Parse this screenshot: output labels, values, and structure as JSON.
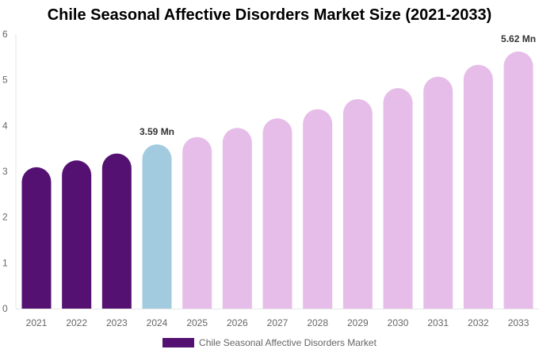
{
  "chart_data": {
    "type": "bar",
    "title": "Chile Seasonal Affective Disorders Market Size (2021-2033)",
    "categories": [
      "2021",
      "2022",
      "2023",
      "2024",
      "2025",
      "2026",
      "2027",
      "2028",
      "2029",
      "2030",
      "2031",
      "2032",
      "2033"
    ],
    "series": [
      {
        "name": "Chile Seasonal Affective Disorders Market",
        "values": [
          3.09,
          3.24,
          3.39,
          3.59,
          3.75,
          3.95,
          4.16,
          4.36,
          4.58,
          4.82,
          5.07,
          5.33,
          5.62
        ]
      }
    ],
    "data_labels": {
      "3": "3.59 Mn",
      "12": "5.62 Mn"
    },
    "ylim": [
      0,
      6
    ],
    "yticks": [
      0,
      1,
      2,
      3,
      4,
      5,
      6
    ],
    "grid": false,
    "legend": "bottom",
    "colors": {
      "historical": "#541172",
      "base_year": "#a3cbe0",
      "forecast": "#e6bde9"
    },
    "color_groups": [
      "historical",
      "historical",
      "historical",
      "base_year",
      "forecast",
      "forecast",
      "forecast",
      "forecast",
      "forecast",
      "forecast",
      "forecast",
      "forecast",
      "forecast"
    ]
  }
}
